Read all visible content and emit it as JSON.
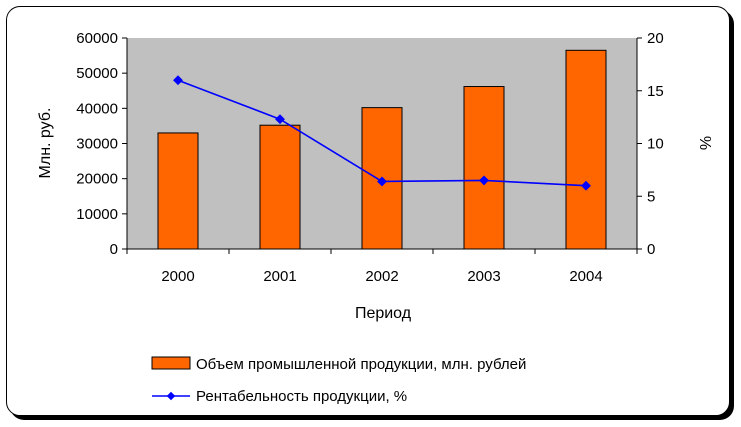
{
  "chart_data": {
    "type": "bar+line",
    "categories": [
      "2000",
      "2001",
      "2002",
      "2003",
      "2004"
    ],
    "series": [
      {
        "name": "Объем промышленной продукции, млн. рублей",
        "type": "bar",
        "axis": "left",
        "color": "#ff6600",
        "values": [
          33000,
          35200,
          40200,
          46200,
          56500
        ]
      },
      {
        "name": "Рентабельность продукции, %",
        "type": "line",
        "axis": "right",
        "color": "#0000ff",
        "values": [
          16.0,
          12.3,
          6.4,
          6.5,
          6.0
        ]
      }
    ],
    "xlabel": "Период",
    "ylabel": "Млн. руб.",
    "ylabel_right": "%",
    "ylim": [
      0,
      60000
    ],
    "ylim_right": [
      0,
      20
    ],
    "yticks": [
      "0",
      "10000",
      "20000",
      "30000",
      "40000",
      "50000",
      "60000"
    ],
    "yticks_right": [
      "0",
      "5",
      "10",
      "15",
      "20"
    ],
    "plot_background": "#c0c0c0",
    "grid": false,
    "legend_position": "bottom"
  }
}
